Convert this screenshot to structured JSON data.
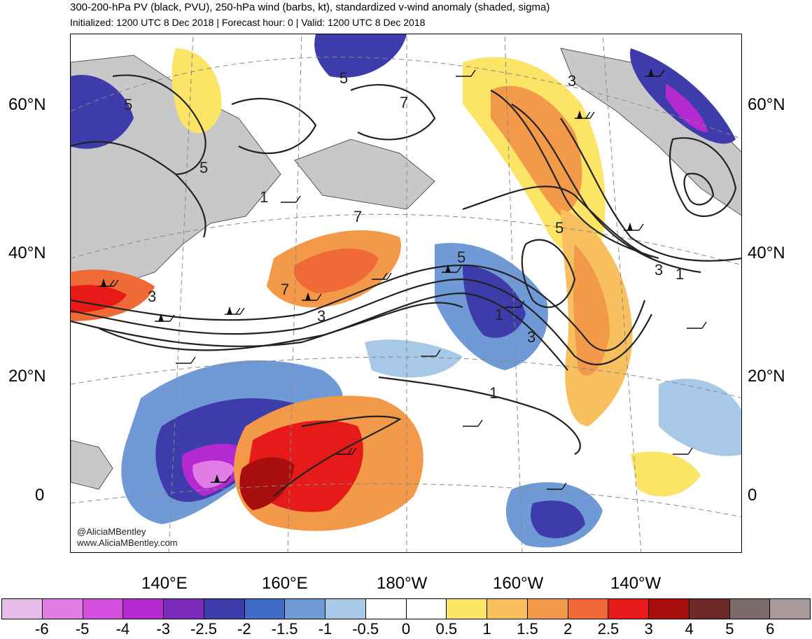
{
  "header": {
    "title": "300-200-hPa PV (black, PVU), 250-hPa wind (barbs, kt), standardized v-wind anomaly (shaded, sigma)",
    "subtitle": "Initialized: 1200 UTC 8 Dec 2018 | Forecast hour: 0 | Valid: 1200 UTC 8 Dec 2018"
  },
  "map": {
    "lat_labels": [
      "60°N",
      "40°N",
      "20°N",
      "0"
    ],
    "lon_labels": [
      "140°E",
      "160°E",
      "180°W",
      "160°W",
      "140°W"
    ],
    "pv_contour_labels": [
      "5",
      "5",
      "5",
      "3",
      "1",
      "7",
      "7",
      "7",
      "3",
      "5",
      "1",
      "3",
      "5",
      "3",
      "1",
      "1",
      "3"
    ],
    "credits": [
      "@AliciaMBentley",
      "www.AliciaMBentley.com"
    ]
  },
  "colorbar": {
    "ticks": [
      "-6",
      "-5",
      "-4",
      "-3",
      "-2.5",
      "-2",
      "-1.5",
      "-1",
      "-0.5",
      "0",
      "0.5",
      "1",
      "1.5",
      "2",
      "2.5",
      "3",
      "4",
      "5",
      "6"
    ],
    "colors": [
      "#e8bce8",
      "#e07ee6",
      "#d650e0",
      "#b42ad0",
      "#7a2ab8",
      "#3e3caa",
      "#3f6cc4",
      "#6f9ad6",
      "#a8c8e8",
      "#ffffff",
      "#ffffff",
      "#fce466",
      "#f7bf5e",
      "#f39a4a",
      "#f06a38",
      "#e61a18",
      "#a80e0e",
      "#6e2a28",
      "#7a6a6a",
      "#a89a9a"
    ]
  }
}
